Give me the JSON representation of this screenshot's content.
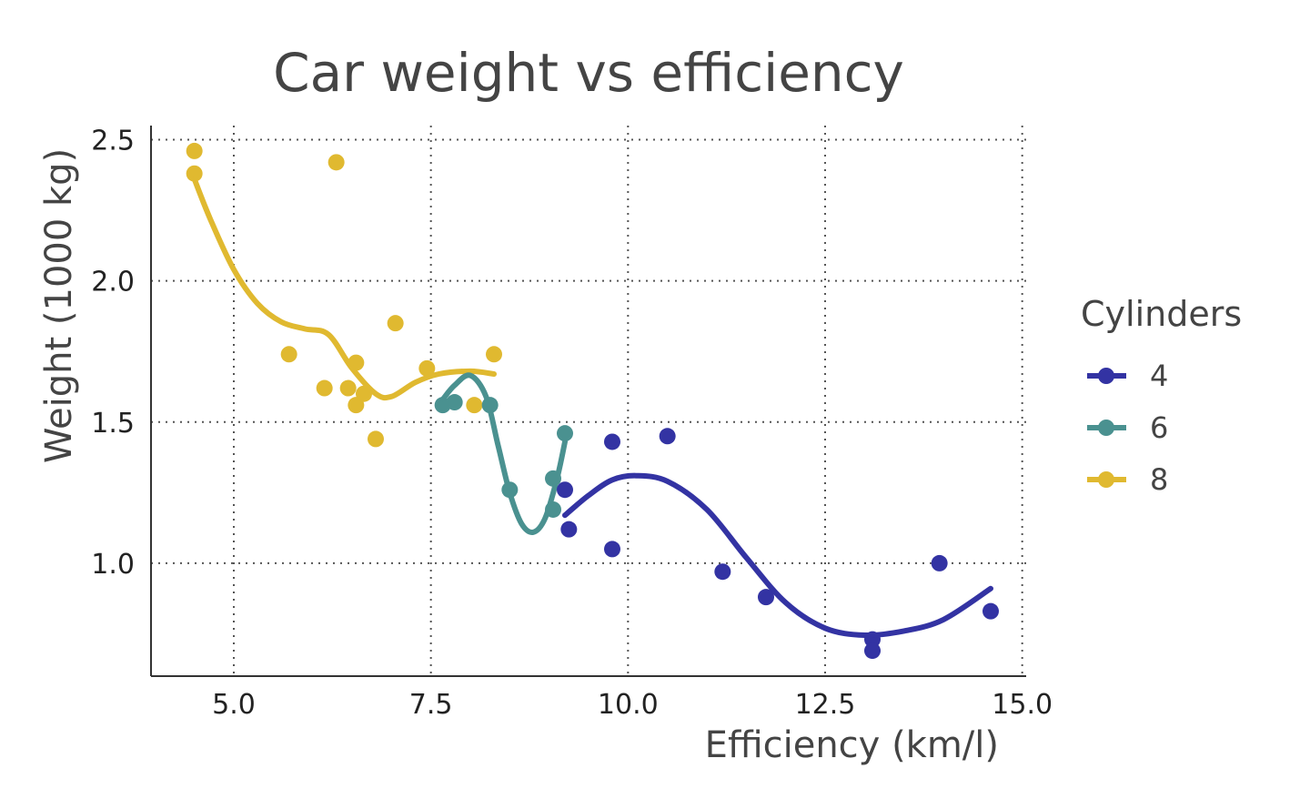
{
  "chart_data": {
    "type": "scatter",
    "title": "Car weight vs efficiency",
    "xlabel": "Efficiency (km/l)",
    "ylabel": "Weight (1000 kg)",
    "xlim": [
      3.95,
      15.05
    ],
    "ylim": [
      0.6,
      2.55
    ],
    "xticks": [
      5.0,
      7.5,
      10.0,
      12.5,
      15.0
    ],
    "yticks": [
      1.0,
      1.5,
      2.0,
      2.5
    ],
    "xtick_labels": [
      "5.0",
      "7.5",
      "10.0",
      "12.5",
      "15.0"
    ],
    "ytick_labels": [
      "1.0",
      "1.5",
      "2.0",
      "2.5"
    ],
    "grid": true,
    "legend": {
      "title": "Cylinders",
      "placement": "right"
    },
    "series": [
      {
        "name": "4",
        "color": "#3333a3",
        "points": [
          [
            9.2,
            1.26
          ],
          [
            9.25,
            1.12
          ],
          [
            9.8,
            1.43
          ],
          [
            9.8,
            1.05
          ],
          [
            10.5,
            1.45
          ],
          [
            11.2,
            0.97
          ],
          [
            11.75,
            0.88
          ],
          [
            13.1,
            0.73
          ],
          [
            13.1,
            0.69
          ],
          [
            13.95,
            1.0
          ],
          [
            14.6,
            0.83
          ]
        ],
        "smooth": [
          [
            9.2,
            1.17
          ],
          [
            9.5,
            1.24
          ],
          [
            9.8,
            1.295
          ],
          [
            10.1,
            1.31
          ],
          [
            10.5,
            1.29
          ],
          [
            11.0,
            1.19
          ],
          [
            11.5,
            1.02
          ],
          [
            12.0,
            0.86
          ],
          [
            12.5,
            0.77
          ],
          [
            13.0,
            0.745
          ],
          [
            13.5,
            0.76
          ],
          [
            14.0,
            0.8
          ],
          [
            14.6,
            0.91
          ]
        ]
      },
      {
        "name": "6",
        "color": "#4a9190",
        "points": [
          [
            7.65,
            1.56
          ],
          [
            7.8,
            1.57
          ],
          [
            8.25,
            1.56
          ],
          [
            8.5,
            1.26
          ],
          [
            9.05,
            1.3
          ],
          [
            9.05,
            1.19
          ],
          [
            9.2,
            1.46
          ]
        ],
        "smooth": [
          [
            7.65,
            1.58
          ],
          [
            7.8,
            1.63
          ],
          [
            8.0,
            1.665
          ],
          [
            8.2,
            1.59
          ],
          [
            8.35,
            1.42
          ],
          [
            8.5,
            1.25
          ],
          [
            8.65,
            1.14
          ],
          [
            8.8,
            1.11
          ],
          [
            8.95,
            1.16
          ],
          [
            9.1,
            1.3
          ],
          [
            9.2,
            1.43
          ]
        ]
      },
      {
        "name": "8",
        "color": "#e0b930",
        "points": [
          [
            4.5,
            2.46
          ],
          [
            4.5,
            2.38
          ],
          [
            5.7,
            1.74
          ],
          [
            6.15,
            1.62
          ],
          [
            6.3,
            2.42
          ],
          [
            6.45,
            1.62
          ],
          [
            6.55,
            1.71
          ],
          [
            6.55,
            1.56
          ],
          [
            6.65,
            1.6
          ],
          [
            6.8,
            1.44
          ],
          [
            7.05,
            1.85
          ],
          [
            7.45,
            1.69
          ],
          [
            8.05,
            1.56
          ],
          [
            8.3,
            1.74
          ]
        ],
        "smooth": [
          [
            4.5,
            2.36
          ],
          [
            4.7,
            2.22
          ],
          [
            5.0,
            2.04
          ],
          [
            5.3,
            1.92
          ],
          [
            5.6,
            1.855
          ],
          [
            5.9,
            1.83
          ],
          [
            6.2,
            1.81
          ],
          [
            6.5,
            1.69
          ],
          [
            6.8,
            1.6
          ],
          [
            7.0,
            1.59
          ],
          [
            7.3,
            1.64
          ],
          [
            7.6,
            1.67
          ],
          [
            8.0,
            1.68
          ],
          [
            8.3,
            1.67
          ]
        ]
      }
    ]
  }
}
